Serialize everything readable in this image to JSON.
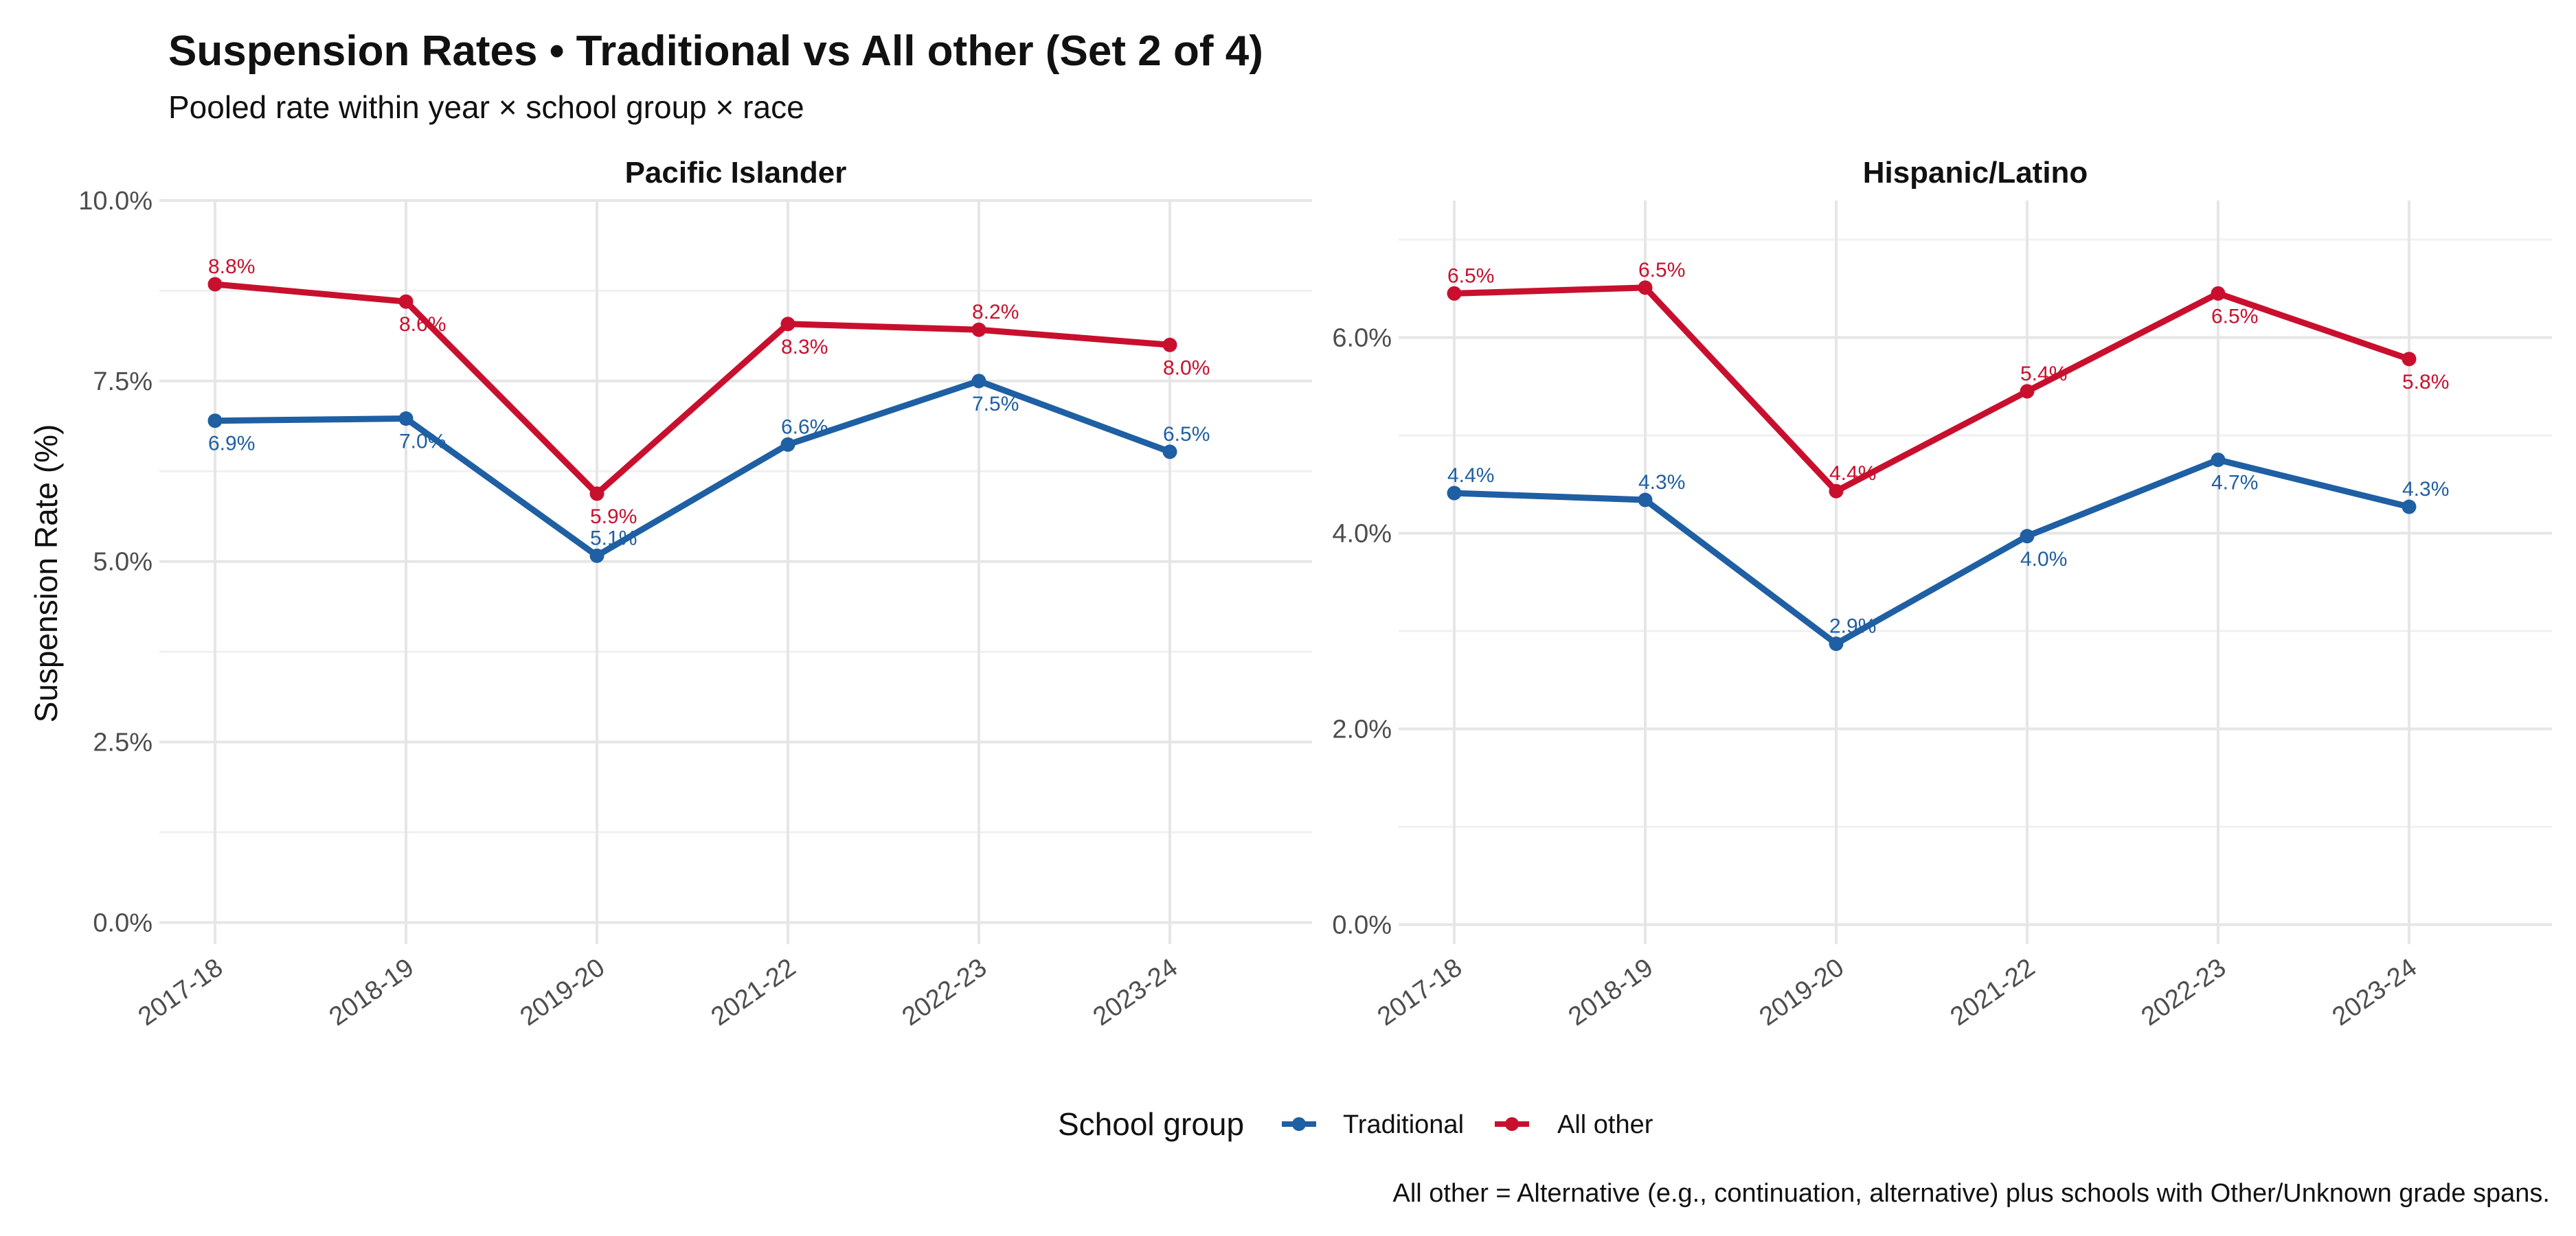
{
  "chart_data": {
    "type": "line",
    "title": "Suspension Rates • Traditional vs All other (Set 2 of 4)",
    "subtitle": "Pooled rate within year × school group × race",
    "ylabel": "Suspension Rate (%)",
    "caption": "All other = Alternative (e.g., continuation, alternative) plus schools with Other/Unknown grade spans.",
    "legend": {
      "title": "School group",
      "placement": "bottom",
      "entries": [
        "Traditional",
        "All other"
      ]
    },
    "categories": [
      "2017-18",
      "2018-19",
      "2019-20",
      "2021-22",
      "2022-23",
      "2023-24"
    ],
    "series_colors": {
      "Traditional": "#1f5fa3",
      "All other": "#c8102e"
    },
    "grid": true,
    "panels": [
      {
        "title": "Pacific Islander",
        "ylim": [
          -0.3,
          10.0
        ],
        "yticks": [
          0.0,
          2.5,
          5.0,
          7.5,
          10.0
        ],
        "ytick_labels": [
          "0.0%",
          "2.5%",
          "5.0%",
          "7.5%",
          "10.0%"
        ],
        "series": [
          {
            "name": "Traditional",
            "values": [
              6.95,
              6.98,
              5.08,
              6.62,
              7.5,
              6.52
            ],
            "labels": [
              "6.9%",
              "7.0%",
              "5.1%",
              "6.6%",
              "7.5%",
              "6.5%"
            ]
          },
          {
            "name": "All other",
            "values": [
              8.84,
              8.6,
              5.94,
              8.29,
              8.21,
              8.0
            ],
            "labels": [
              "8.8%",
              "8.6%",
              "5.9%",
              "8.3%",
              "8.2%",
              "8.0%"
            ]
          }
        ]
      },
      {
        "title": "Hispanic/Latino",
        "ylim": [
          -0.2,
          7.4
        ],
        "yticks": [
          0.0,
          2.0,
          4.0,
          6.0
        ],
        "ytick_labels": [
          "0.0%",
          "2.0%",
          "4.0%",
          "6.0%"
        ],
        "series": [
          {
            "name": "Traditional",
            "values": [
              4.41,
              4.34,
              2.87,
              3.97,
              4.75,
              4.27
            ],
            "labels": [
              "4.4%",
              "4.3%",
              "2.9%",
              "4.0%",
              "4.7%",
              "4.3%"
            ]
          },
          {
            "name": "All other",
            "values": [
              6.45,
              6.51,
              4.43,
              5.45,
              6.45,
              5.78
            ],
            "labels": [
              "6.5%",
              "6.5%",
              "4.4%",
              "5.4%",
              "6.5%",
              "5.8%"
            ]
          }
        ]
      }
    ]
  }
}
